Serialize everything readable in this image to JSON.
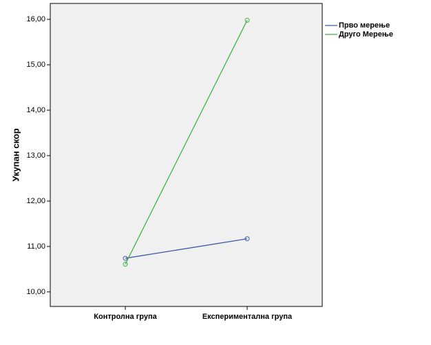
{
  "chart_data": {
    "type": "line",
    "y_label": "Укупан скор",
    "categories": [
      "Контролна група",
      "Експериментална група"
    ],
    "series": [
      {
        "name": "Прво мерење",
        "color": "#3e58ac",
        "values": [
          10.74,
          11.17
        ]
      },
      {
        "name": "Друго Мерење",
        "color": "#3cb542",
        "values": [
          10.61,
          15.98
        ]
      }
    ],
    "ylim": [
      9.68,
      16.35
    ],
    "yticks": [
      {
        "value": 10,
        "label": "10,00"
      },
      {
        "value": 11,
        "label": "11,00"
      },
      {
        "value": 12,
        "label": "12,00"
      },
      {
        "value": 13,
        "label": "13,00"
      },
      {
        "value": 14,
        "label": "14,00"
      },
      {
        "value": 15,
        "label": "15,00"
      },
      {
        "value": 16,
        "label": "16,00"
      }
    ],
    "legend": "outside-top-right"
  }
}
